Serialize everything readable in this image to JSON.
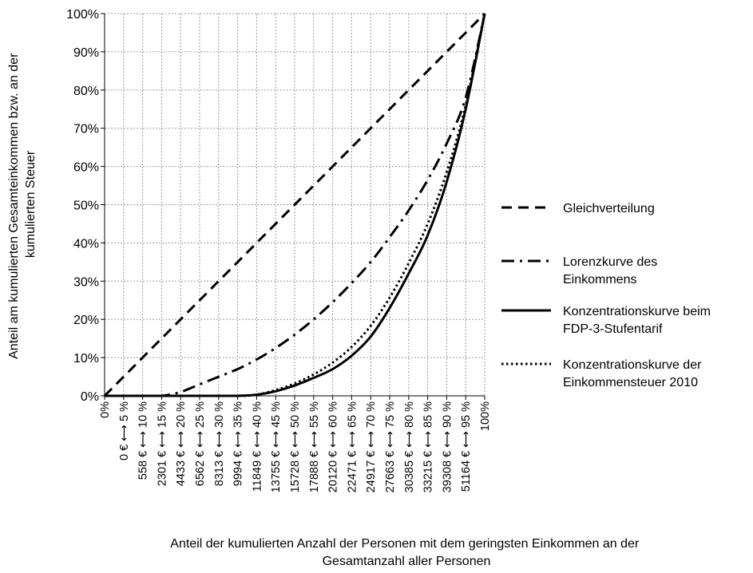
{
  "chart_data": {
    "type": "line",
    "title": "",
    "xlabel": "Anteil der kumulierten Anzahl der Personen mit dem geringsten Einkommen an der Gesamtanzahl aller Personen",
    "ylabel": "Anteil am kumulierten Gesamteinkommen bzw. an der kumulierten Steuer",
    "ylim": [
      0,
      100
    ],
    "y_ticks": [
      "0%",
      "10%",
      "20%",
      "30%",
      "40%",
      "50%",
      "60%",
      "70%",
      "80%",
      "90%",
      "100%"
    ],
    "x_values": [
      0,
      5,
      10,
      15,
      20,
      25,
      30,
      35,
      40,
      45,
      50,
      55,
      60,
      65,
      70,
      75,
      80,
      85,
      90,
      95,
      100
    ],
    "categories": [
      "0%",
      "0 € ⟷ 5 %",
      "558 € ⟷ 10 %",
      "2301 € ⟷ 15 %",
      "4433 € ⟷ 20 %",
      "6562 € ⟷ 25 %",
      "8313 € ⟷ 30 %",
      "9994 € ⟷ 35 %",
      "11849 € ⟷ 40 %",
      "13755 € ⟷ 45 %",
      "15728 € ⟷ 50 %",
      "17888 € ⟷ 55 %",
      "20120 € ⟷ 60 %",
      "22471 € ⟷ 65 %",
      "24917 € ⟷ 70 %",
      "27663 € ⟷ 75 %",
      "30385 € ⟷ 80 %",
      "33215 € ⟷ 85 %",
      "39308 € ⟷ 90 %",
      "51164 € ⟷ 95 %",
      "100%"
    ],
    "grid": true,
    "legend_position": "right",
    "series": [
      {
        "name": "Gleichverteilung",
        "style": "dashed",
        "values": [
          0,
          5,
          10,
          15,
          20,
          25,
          30,
          35,
          40,
          45,
          50,
          55,
          60,
          65,
          70,
          75,
          80,
          85,
          90,
          95,
          100
        ]
      },
      {
        "name": "Lorenzkurve des Einkommens",
        "style": "dashdot",
        "values": [
          0,
          0,
          0,
          0,
          1,
          3,
          5,
          7,
          9.5,
          12.5,
          16,
          20,
          24.5,
          29.5,
          35,
          41.5,
          48.5,
          56.5,
          66,
          78,
          100
        ]
      },
      {
        "name": "Konzentrationskurve beim FDP-3-Stufentarif",
        "style": "solid",
        "values": [
          0,
          0,
          0,
          0,
          0,
          0,
          0,
          0,
          0.3,
          1.2,
          2.7,
          4.7,
          7,
          10.5,
          15.5,
          23,
          32,
          42,
          56,
          75,
          100
        ]
      },
      {
        "name": "Konzentrationskurve der Einkommensteuer 2010",
        "style": "dotted",
        "values": [
          0,
          0,
          0,
          0,
          0,
          0,
          0,
          0,
          0.3,
          1.5,
          3.2,
          5.6,
          8.7,
          12.8,
          18.3,
          25.7,
          34.7,
          45,
          58.5,
          76,
          100
        ]
      }
    ]
  },
  "legend": [
    {
      "style": "dashed",
      "lines": [
        "Gleichverteilung"
      ]
    },
    {
      "style": "dashdot",
      "lines": [
        "Lorenzkurve des",
        "Einkommens"
      ]
    },
    {
      "style": "solid",
      "lines": [
        "Konzentrationskurve beim",
        "FDP-3-Stufentarif"
      ]
    },
    {
      "style": "dotted",
      "lines": [
        "Konzentrationskurve der",
        "Einkommensteuer 2010"
      ]
    }
  ],
  "xlabel_lines": [
    "Anteil der kumulierten Anzahl der Personen mit dem geringsten Einkommen an der",
    "Gesamtanzahl aller Personen"
  ],
  "ylabel_lines": [
    "Anteil am kumulierten Gesamteinkommen bzw. an der",
    "kumulierten Steuer"
  ]
}
